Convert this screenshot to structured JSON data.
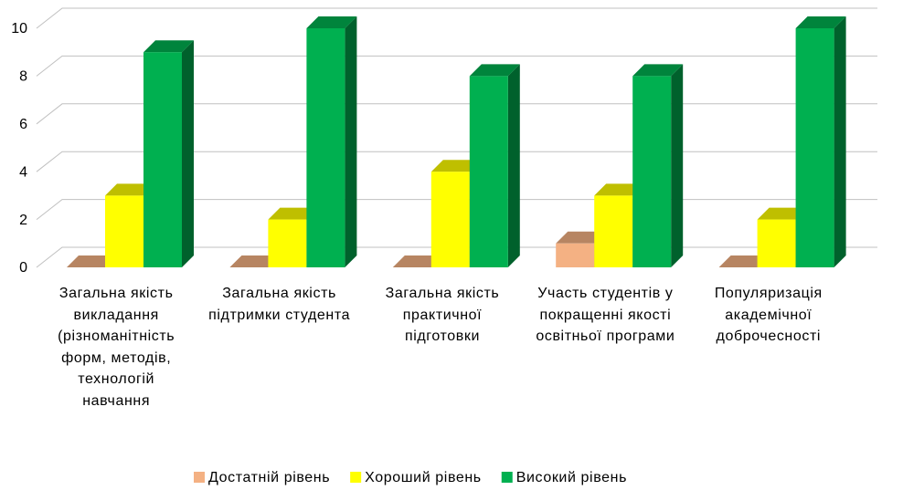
{
  "chart_data": {
    "type": "bar3d",
    "categories": [
      "Загальна якість\nвикладання\n(різноманітність\nформ, методів,\nтехнологій\nнавчання",
      "Загальна якість\nпідтримки студента",
      "Загальна якість\nпрактичної\nпідготовки",
      "Участь студентів у\nпокращенні якості\nосвітньої програми",
      "Популяризація\nакадемічної\nдоброчесності"
    ],
    "series": [
      {
        "name": "Достатній рівень",
        "color": "#f4b183",
        "values": [
          0,
          0,
          0,
          1,
          0
        ]
      },
      {
        "name": "Хороший рівень",
        "color": "#ffff00",
        "values": [
          3,
          2,
          4,
          3,
          2
        ]
      },
      {
        "name": "Високий рівень",
        "color": "#00b050",
        "values": [
          9,
          10,
          8,
          8,
          10
        ]
      }
    ],
    "ylim": [
      0,
      10
    ],
    "yticks": [
      0,
      2,
      4,
      6,
      8,
      10
    ],
    "grid": true,
    "legend": "bottom"
  }
}
